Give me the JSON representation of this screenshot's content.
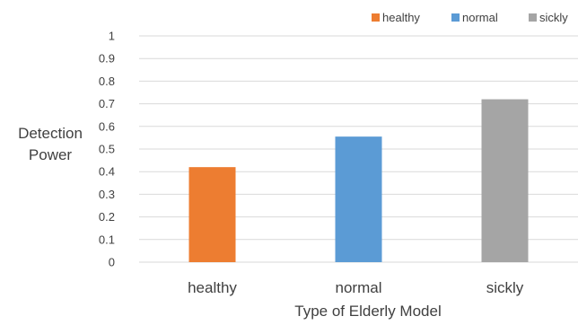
{
  "chart_data": {
    "type": "bar",
    "title": "",
    "xlabel": "Type of Elderly Model",
    "ylabel": [
      "Detection",
      "Power"
    ],
    "categories": [
      "healthy",
      "normal",
      "sickly"
    ],
    "values": [
      0.42,
      0.555,
      0.72
    ],
    "colors": [
      "#ED7D31",
      "#5B9BD5",
      "#A5A5A5"
    ],
    "ylim": [
      0,
      1
    ],
    "yticks": [
      "0",
      "0.1",
      "0.2",
      "0.3",
      "0.4",
      "0.5",
      "0.6",
      "0.7",
      "0.8",
      "0.9",
      "1"
    ],
    "grid": true,
    "legend": {
      "position": "top-right",
      "entries": [
        "healthy",
        "normal",
        "sickly"
      ]
    }
  }
}
